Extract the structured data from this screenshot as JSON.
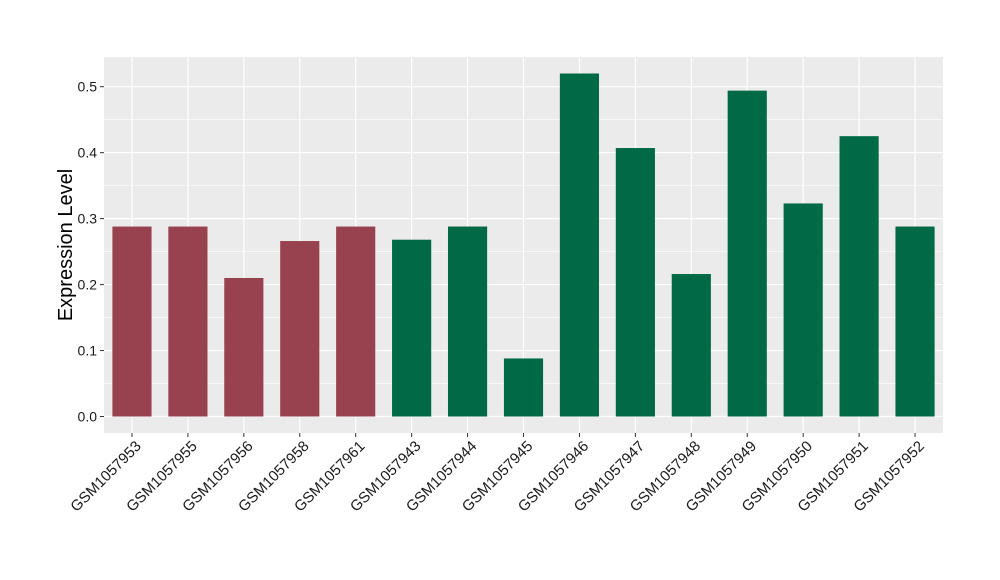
{
  "chart_data": {
    "type": "bar",
    "title": "",
    "xlabel": "",
    "ylabel": "Expression Level",
    "ylim": [
      -0.025,
      0.545
    ],
    "yticks": [
      0.0,
      0.1,
      0.2,
      0.3,
      0.4,
      0.5
    ],
    "ytick_labels": [
      "0.0",
      "0.1",
      "0.2",
      "0.3",
      "0.4",
      "0.5"
    ],
    "grid": true,
    "categories": [
      "GSM1057953",
      "GSM1057955",
      "GSM1057956",
      "GSM1057958",
      "GSM1057961",
      "GSM1057943",
      "GSM1057944",
      "GSM1057945",
      "GSM1057946",
      "GSM1057947",
      "GSM1057948",
      "GSM1057949",
      "GSM1057950",
      "GSM1057951",
      "GSM1057952"
    ],
    "values": [
      0.288,
      0.288,
      0.21,
      0.266,
      0.288,
      0.268,
      0.288,
      0.088,
      0.52,
      0.407,
      0.216,
      0.494,
      0.323,
      0.425,
      0.288
    ],
    "group_index": [
      0,
      0,
      0,
      0,
      0,
      1,
      1,
      1,
      1,
      1,
      1,
      1,
      1,
      1,
      1
    ],
    "group_colors": [
      "#99424f",
      "#006946"
    ],
    "panel_background": "#ebebeb",
    "grid_color": "#ffffff"
  }
}
